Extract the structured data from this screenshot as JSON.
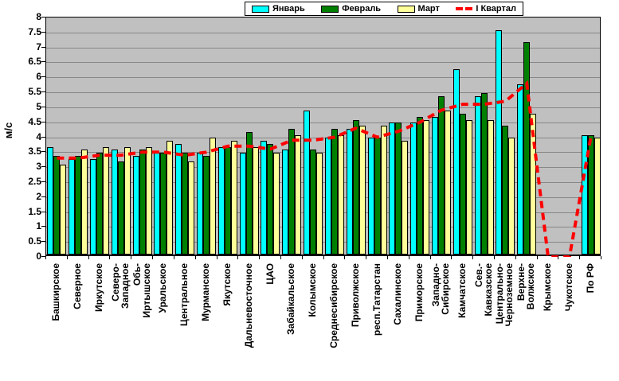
{
  "chart_data": {
    "type": "bar",
    "title": "",
    "ylabel": "м/с",
    "ylim": [
      0,
      8
    ],
    "ytick_step": 0.5,
    "grid": true,
    "plot_bg": "#C0C0C0",
    "legend_position": "top-center",
    "categories": [
      "Башкирское",
      "Северное",
      "Иркутское",
      "Северо-\nЗападное",
      "Обь-\nИртышское",
      "Уральское",
      "Центральное",
      "Мурманское",
      "Якутское",
      "Дальневосточное",
      "ЦАО",
      "Забайкальское",
      "Колымское",
      "Среднесибирское",
      "Приволжское",
      "респ.Татарстан",
      "Сахалинское",
      "Приморское",
      "Западно-\nСибирское",
      "Камчатское",
      "Сев.-\nКавказское",
      "Центрально-\nЧерноземное",
      "Верхне-\nВолжское",
      "Крымское",
      "Чукотское",
      "По РФ"
    ],
    "series": [
      {
        "name": "Январь",
        "kind": "bar",
        "color": "#00FFFF",
        "values": [
          3.6,
          3.2,
          3.2,
          3.5,
          3.3,
          3.4,
          3.7,
          3.4,
          3.6,
          3.4,
          3.8,
          3.5,
          4.8,
          3.9,
          4.2,
          3.9,
          4.4,
          4.4,
          4.6,
          6.2,
          5.3,
          7.5,
          5.7,
          0,
          0,
          4.0
        ]
      },
      {
        "name": "Февраль",
        "kind": "bar",
        "color": "#008000",
        "values": [
          3.3,
          3.3,
          3.4,
          3.1,
          3.5,
          3.4,
          3.4,
          3.3,
          3.6,
          4.1,
          3.7,
          4.2,
          3.5,
          4.2,
          4.5,
          3.9,
          4.4,
          4.6,
          5.3,
          4.7,
          5.4,
          4.3,
          7.1,
          0,
          0,
          4.0
        ]
      },
      {
        "name": "Март",
        "kind": "bar",
        "color": "#FFFF99",
        "values": [
          3.0,
          3.5,
          3.6,
          3.6,
          3.6,
          3.8,
          3.1,
          3.9,
          3.8,
          3.6,
          3.4,
          4.0,
          3.4,
          4.0,
          4.3,
          4.3,
          3.8,
          4.5,
          4.8,
          4.5,
          4.5,
          3.9,
          4.7,
          0,
          0,
          3.9
        ]
      },
      {
        "name": "I Квартал",
        "kind": "line",
        "color": "#FF0000",
        "dashed": true,
        "values": [
          3.3,
          3.3,
          3.4,
          3.4,
          3.5,
          3.5,
          3.4,
          3.5,
          3.7,
          3.7,
          3.6,
          3.9,
          3.9,
          4.0,
          4.3,
          4.0,
          4.2,
          4.5,
          4.9,
          5.1,
          5.1,
          5.2,
          5.8,
          0,
          0,
          4.0
        ]
      }
    ],
    "colors": {
      "grid": "#878787",
      "axis": "#000000",
      "bar_border": "#000000"
    }
  }
}
